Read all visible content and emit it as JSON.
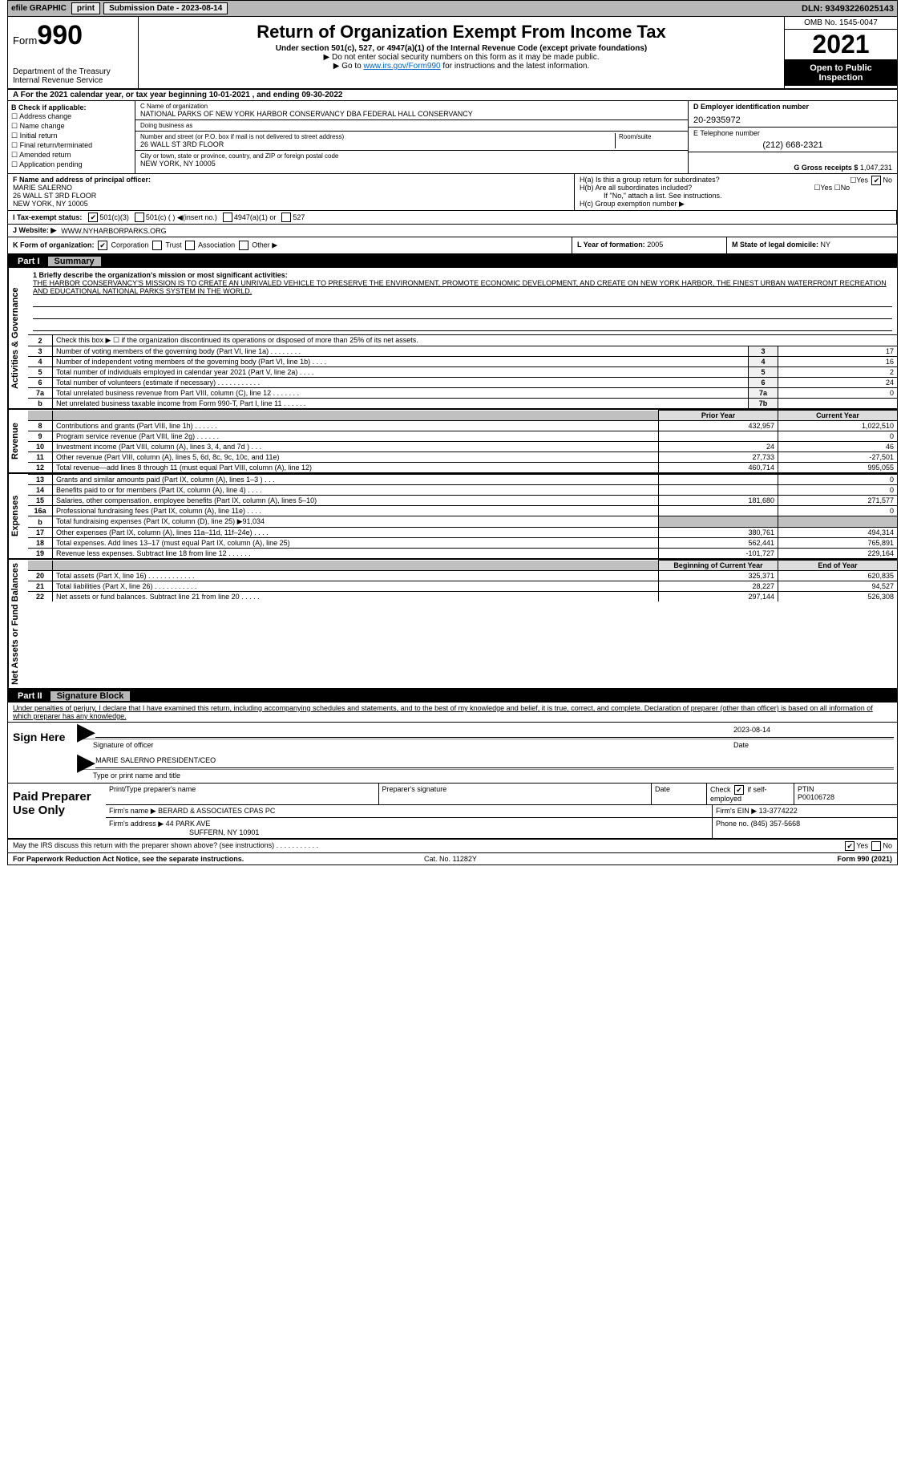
{
  "topbar": {
    "efile": "efile GRAPHIC",
    "print": "print",
    "sub_label": "Submission Date - 2023-08-14",
    "dln_label": "DLN: 93493226025143"
  },
  "header": {
    "form_prefix": "Form",
    "form_number": "990",
    "dept": "Department of the Treasury",
    "irs": "Internal Revenue Service",
    "title": "Return of Organization Exempt From Income Tax",
    "sub1": "Under section 501(c), 527, or 4947(a)(1) of the Internal Revenue Code (except private foundations)",
    "sub2": "▶ Do not enter social security numbers on this form as it may be made public.",
    "sub3_pre": "▶ Go to ",
    "sub3_link": "www.irs.gov/Form990",
    "sub3_post": " for instructions and the latest information.",
    "omb": "OMB No. 1545-0047",
    "year": "2021",
    "open": "Open to Public Inspection"
  },
  "rowA": {
    "text": "A For the 2021 calendar year, or tax year beginning 10-01-2021    , and ending 09-30-2022"
  },
  "colB": {
    "hdr": "B Check if applicable:",
    "opts": [
      "Address change",
      "Name change",
      "Initial return",
      "Final return/terminated",
      "Amended return",
      "Application pending"
    ]
  },
  "colC": {
    "name_lbl": "C Name of organization",
    "name": "NATIONAL PARKS OF NEW YORK HARBOR CONSERVANCY DBA FEDERAL HALL CONSERVANCY",
    "dba_lbl": "Doing business as",
    "dba": "",
    "addr_lbl": "Number and street (or P.O. box if mail is not delivered to street address)",
    "room_lbl": "Room/suite",
    "addr": "26 WALL ST 3RD FLOOR",
    "city_lbl": "City or town, state or province, country, and ZIP or foreign postal code",
    "city": "NEW YORK, NY  10005"
  },
  "colD": {
    "ein_lbl": "D Employer identification number",
    "ein": "20-2935972",
    "tel_lbl": "E Telephone number",
    "tel": "(212) 668-2321",
    "gross_lbl": "G Gross receipts $",
    "gross": "1,047,231"
  },
  "rowF": {
    "lbl": "F  Name and address of principal officer:",
    "name": "MARIE SALERNO",
    "addr1": "26 WALL ST 3RD FLOOR",
    "addr2": "NEW YORK, NY  10005"
  },
  "rowH": {
    "ha": "H(a)  Is this a group return for subordinates?",
    "ha_yes": "Yes",
    "ha_no": "No",
    "hb": "H(b)  Are all subordinates included?",
    "hb_yes": "Yes",
    "hb_no": "No",
    "hb_note": "If \"No,\" attach a list. See instructions.",
    "hc": "H(c)  Group exemption number ▶"
  },
  "rowI": {
    "lbl": "I    Tax-exempt status:",
    "o1": "501(c)(3)",
    "o2": "501(c) (   ) ◀(insert no.)",
    "o3": "4947(a)(1) or",
    "o4": "527"
  },
  "rowJ": {
    "lbl": "J   Website: ▶",
    "val": "WWW.NYHARBORPARKS.ORG"
  },
  "rowK": {
    "lbl": "K Form of organization:",
    "o1": "Corporation",
    "o2": "Trust",
    "o3": "Association",
    "o4": "Other ▶"
  },
  "rowL": {
    "lbl": "L Year of formation:",
    "val": "2005"
  },
  "rowM": {
    "lbl": "M State of legal domicile:",
    "val": "NY"
  },
  "part1": {
    "num": "Part I",
    "title": "Summary"
  },
  "side": {
    "gov": "Activities & Governance",
    "rev": "Revenue",
    "exp": "Expenses",
    "net": "Net Assets or Fund Balances"
  },
  "summary": {
    "l1_lbl": "1  Briefly describe the organization's mission or most significant activities:",
    "l1_text": "THE HARBOR CONSERVANCY'S MISSION IS TO CREATE AN UNRIVALED VEHICLE TO PRESERVE THE ENVIRONMENT, PROMOTE ECONOMIC DEVELOPMENT, AND CREATE ON NEW YORK HARBOR, THE FINEST URBAN WATERFRONT RECREATION AND EDUCATIONAL NATIONAL PARKS SYSTEM IN THE WORLD.",
    "l2": "Check this box ▶ ☐  if the organization discontinued its operations or disposed of more than 25% of its net assets.",
    "rows_gov": [
      {
        "n": "3",
        "d": "Number of voting members of the governing body (Part VI, line 1a)   .    .    .    .    .    .    .    .",
        "box": "3",
        "v": "17"
      },
      {
        "n": "4",
        "d": "Number of independent voting members of the governing body (Part VI, line 1b)   .    .    .    .",
        "box": "4",
        "v": "16"
      },
      {
        "n": "5",
        "d": "Total number of individuals employed in calendar year 2021 (Part V, line 2a)   .    .    .    .",
        "box": "5",
        "v": "2"
      },
      {
        "n": "6",
        "d": "Total number of volunteers (estimate if necessary)    .    .    .    .    .    .    .    .    .    .    .",
        "box": "6",
        "v": "24"
      },
      {
        "n": "7a",
        "d": "Total unrelated business revenue from Part VIII, column (C), line 12   .    .    .    .    .    .    .",
        "box": "7a",
        "v": "0"
      },
      {
        "n": "b",
        "d": "Net unrelated business taxable income from Form 990-T, Part I, line 11   .    .    .    .    .    .",
        "box": "7b",
        "v": ""
      }
    ],
    "hdr_prior": "Prior Year",
    "hdr_curr": "Current Year",
    "rows_rev": [
      {
        "n": "8",
        "d": "Contributions and grants (Part VIII, line 1h)   .    .    .    .    .    .",
        "p": "432,957",
        "c": "1,022,510"
      },
      {
        "n": "9",
        "d": "Program service revenue (Part VIII, line 2g)   .    .    .    .    .    .",
        "p": "",
        "c": "0"
      },
      {
        "n": "10",
        "d": "Investment income (Part VIII, column (A), lines 3, 4, and 7d )   .    .    .",
        "p": "24",
        "c": "46"
      },
      {
        "n": "11",
        "d": "Other revenue (Part VIII, column (A), lines 5, 6d, 8c, 9c, 10c, and 11e)",
        "p": "27,733",
        "c": "-27,501"
      },
      {
        "n": "12",
        "d": "Total revenue—add lines 8 through 11 (must equal Part VIII, column (A), line 12)",
        "p": "460,714",
        "c": "995,055"
      }
    ],
    "rows_exp": [
      {
        "n": "13",
        "d": "Grants and similar amounts paid (Part IX, column (A), lines 1–3 )   .    .    .",
        "p": "",
        "c": "0"
      },
      {
        "n": "14",
        "d": "Benefits paid to or for members (Part IX, column (A), line 4)   .    .    .    .",
        "p": "",
        "c": "0"
      },
      {
        "n": "15",
        "d": "Salaries, other compensation, employee benefits (Part IX, column (A), lines 5–10)",
        "p": "181,680",
        "c": "271,577"
      },
      {
        "n": "16a",
        "d": "Professional fundraising fees (Part IX, column (A), line 11e)   .    .    .    .",
        "p": "",
        "c": "0"
      },
      {
        "n": "b",
        "d": "Total fundraising expenses (Part IX, column (D), line 25) ▶91,034",
        "p": "shade",
        "c": "shade"
      },
      {
        "n": "17",
        "d": "Other expenses (Part IX, column (A), lines 11a–11d, 11f–24e)   .    .    .    .",
        "p": "380,761",
        "c": "494,314"
      },
      {
        "n": "18",
        "d": "Total expenses. Add lines 13–17 (must equal Part IX, column (A), line 25)",
        "p": "562,441",
        "c": "765,891"
      },
      {
        "n": "19",
        "d": "Revenue less expenses. Subtract line 18 from line 12   .    .    .    .    .    .",
        "p": "-101,727",
        "c": "229,164"
      }
    ],
    "hdr_beg": "Beginning of Current Year",
    "hdr_end": "End of Year",
    "rows_net": [
      {
        "n": "20",
        "d": "Total assets (Part X, line 16)   .    .    .    .    .    .    .    .    .    .    .    .",
        "p": "325,371",
        "c": "620,835"
      },
      {
        "n": "21",
        "d": "Total liabilities (Part X, line 26)   .    .    .    .    .    .    .    .    .    .    .",
        "p": "28,227",
        "c": "94,527"
      },
      {
        "n": "22",
        "d": "Net assets or fund balances. Subtract line 21 from line 20   .    .    .    .    .",
        "p": "297,144",
        "c": "526,308"
      }
    ]
  },
  "part2": {
    "num": "Part II",
    "title": "Signature Block"
  },
  "sig": {
    "decl": "Under penalties of perjury, I declare that I have examined this return, including accompanying schedules and statements, and to the best of my knowledge and belief, it is true, correct, and complete. Declaration of preparer (other than officer) is based on all information of which preparer has any knowledge.",
    "sign_here": "Sign Here",
    "sig_officer": "Signature of officer",
    "date": "Date",
    "date_val": "2023-08-14",
    "name": "MARIE SALERNO  PRESIDENT/CEO",
    "name_lbl": "Type or print name and title"
  },
  "paid": {
    "lbl": "Paid Preparer Use Only",
    "r1": {
      "a": "Print/Type preparer's name",
      "b": "Preparer's signature",
      "c": "Date",
      "d_lbl": "Check",
      "d_if": "if self-employed",
      "e_lbl": "PTIN",
      "e": "P00106728"
    },
    "r2": {
      "a": "Firm's name     ▶",
      "av": "BERARD & ASSOCIATES CPAS PC",
      "b": "Firm's EIN ▶",
      "bv": "13-3774222"
    },
    "r3": {
      "a": "Firm's address ▶",
      "av1": "44 PARK AVE",
      "av2": "SUFFERN, NY  10901",
      "b": "Phone no.",
      "bv": "(845) 357-5668"
    }
  },
  "footer": {
    "q": "May the IRS discuss this return with the preparer shown above? (see instructions)   .    .    .    .    .    .    .    .    .    .    .",
    "yes": "Yes",
    "no": "No",
    "pra": "For Paperwork Reduction Act Notice, see the separate instructions.",
    "cat": "Cat. No. 11282Y",
    "form": "Form 990 (2021)"
  },
  "colors": {
    "topbar_bg": "#b8b8b8",
    "link": "#0066cc",
    "black": "#000000"
  }
}
